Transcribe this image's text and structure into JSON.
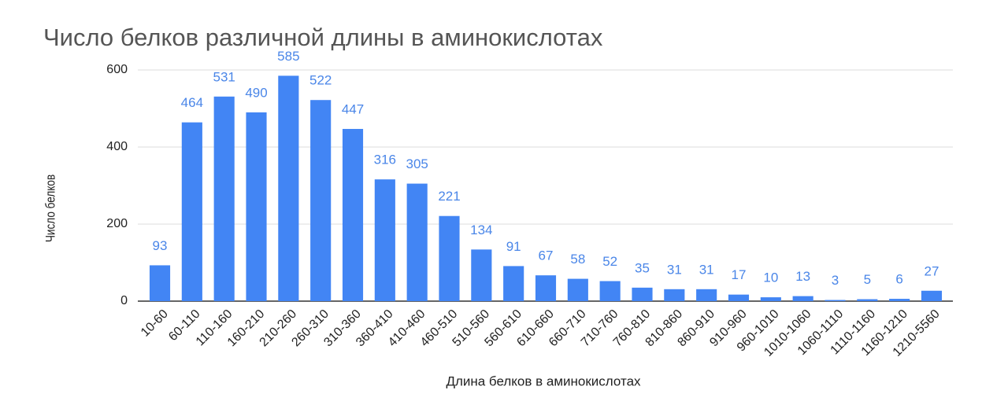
{
  "chart_data": {
    "type": "bar",
    "title": "Число белков различной длины в аминокислотах",
    "x_label": "Длина белков в аминокислотах",
    "y_label": "Число белков",
    "categories": [
      "10-60",
      "60-110",
      "110-160",
      "160-210",
      "210-260",
      "260-310",
      "310-360",
      "360-410",
      "410-460",
      "460-510",
      "510-560",
      "560-610",
      "610-660",
      "660-710",
      "710-760",
      "760-810",
      "810-860",
      "860-910",
      "910-960",
      "960-1010",
      "1010-1060",
      "1060-1110",
      "1110-1160",
      "1160-1210",
      "1210-5560"
    ],
    "values": [
      93,
      464,
      531,
      490,
      585,
      522,
      447,
      316,
      305,
      221,
      134,
      91,
      67,
      58,
      52,
      35,
      31,
      31,
      17,
      10,
      13,
      3,
      5,
      6,
      27
    ],
    "color": "#4285f4",
    "ylim": [
      0,
      600
    ],
    "yticks": [
      0,
      200,
      400,
      600
    ],
    "grid": true
  }
}
